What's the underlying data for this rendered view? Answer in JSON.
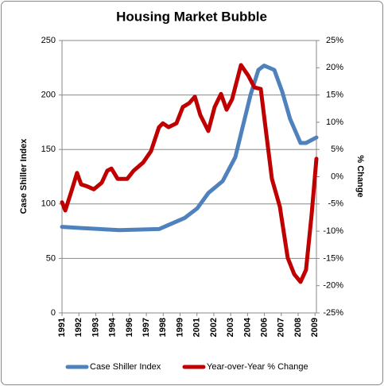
{
  "chart_data": {
    "type": "line",
    "title": "Housing Market Bubble",
    "y_label": "Case Shiller Index",
    "y2_label": "% Change",
    "xlim": [
      1991,
      2009.1
    ],
    "xticks": [
      {
        "value": 1991,
        "label": "1991"
      },
      {
        "value": 1992.2,
        "label": "1992"
      },
      {
        "value": 1993.4,
        "label": "1993"
      },
      {
        "value": 1994.6,
        "label": "1994"
      },
      {
        "value": 1995.8,
        "label": "1996"
      },
      {
        "value": 1997.0,
        "label": "1997"
      },
      {
        "value": 1998.2,
        "label": "1998"
      },
      {
        "value": 1999.4,
        "label": "1999"
      },
      {
        "value": 2000.6,
        "label": "2001"
      },
      {
        "value": 2001.8,
        "label": "2002"
      },
      {
        "value": 2003.0,
        "label": "2003"
      },
      {
        "value": 2004.2,
        "label": "2004"
      },
      {
        "value": 2005.4,
        "label": "2006"
      },
      {
        "value": 2006.6,
        "label": "2007"
      },
      {
        "value": 2007.8,
        "label": "2008"
      },
      {
        "value": 2009.0,
        "label": "2009"
      }
    ],
    "ylim": [
      0,
      250
    ],
    "yticks": [
      0,
      50,
      100,
      150,
      200,
      250
    ],
    "y2lim": [
      -25,
      25
    ],
    "y2ticks": [
      {
        "value": -25,
        "label": "-25%"
      },
      {
        "value": -20,
        "label": "-20%"
      },
      {
        "value": -15,
        "label": "-15%"
      },
      {
        "value": -10,
        "label": "-10%"
      },
      {
        "value": -5,
        "label": "-5%"
      },
      {
        "value": 0,
        "label": "0%"
      },
      {
        "value": 5,
        "label": "5%"
      },
      {
        "value": 10,
        "label": "10%"
      },
      {
        "value": 15,
        "label": "15%"
      },
      {
        "value": 20,
        "label": "20%"
      },
      {
        "value": 25,
        "label": "25%"
      }
    ],
    "grid": true,
    "legend": "bottom",
    "series": [
      {
        "name": "Case Shiller Index",
        "color": "#4f81bd",
        "axis": "y",
        "x": [
          1991,
          1992.24,
          1995.07,
          1997.9,
          1999.71,
          2000.62,
          2001.41,
          2002.43,
          2003.33,
          2003.84,
          2004.41,
          2004.97,
          2005.37,
          2006.1,
          2006.67,
          2007.23,
          2007.97,
          2008.36,
          2009.1
        ],
        "values": [
          79,
          78,
          76,
          77,
          87,
          96,
          110,
          121,
          143,
          170,
          200,
          223,
          227,
          223,
          203,
          178,
          156,
          156,
          161
        ]
      },
      {
        "name": "Year-over-Year % Change",
        "color": "#c00000",
        "axis": "y2",
        "x": [
          1991,
          1991.23,
          1991.68,
          1992.07,
          1992.36,
          1992.81,
          1993.26,
          1993.83,
          1994.22,
          1994.51,
          1994.96,
          1995.64,
          1996.09,
          1996.77,
          1997.33,
          1997.9,
          1998.18,
          1998.58,
          1999.14,
          1999.6,
          2000.05,
          2000.45,
          2000.84,
          2001.41,
          2001.86,
          2002.31,
          2002.71,
          2003.1,
          2003.73,
          2004.24,
          2004.69,
          2005.14,
          2005.54,
          2005.93,
          2006.5,
          2007.06,
          2007.52,
          2007.97,
          2008.36,
          2008.76,
          2009.1
        ],
        "values": [
          -4.7,
          -6.2,
          -2.6,
          0.7,
          -1.4,
          -1.8,
          -2.3,
          -1.1,
          1.1,
          1.5,
          -0.4,
          -0.4,
          1.1,
          2.6,
          4.7,
          9.1,
          9.8,
          9.1,
          9.8,
          12.8,
          13.5,
          14.7,
          11.3,
          8.4,
          12.8,
          15.2,
          12.3,
          14.2,
          20.5,
          18.6,
          16.4,
          16.1,
          7.7,
          -0.4,
          -5.5,
          -14.9,
          -17.9,
          -19.3,
          -17.1,
          -6.9,
          3.3
        ]
      }
    ]
  }
}
